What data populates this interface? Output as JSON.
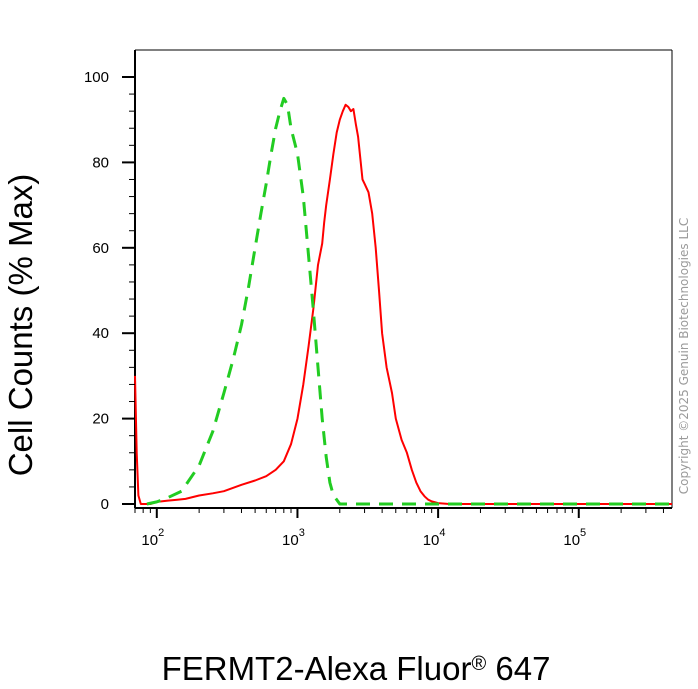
{
  "chart_data": {
    "type": "line",
    "xlabel": "FERMT2-Alexa Fluor",
    "xlabel_mark": "®",
    "xlabel_suffix": " 647",
    "ylabel": "Cell Counts (% Max)",
    "x_scale": "log",
    "xlim": [
      70,
      460000
    ],
    "ylim": [
      0,
      100
    ],
    "y_ticks": [
      0,
      20,
      40,
      60,
      80,
      100
    ],
    "x_ticks": [
      {
        "value": 100,
        "base": "10",
        "exp": "2"
      },
      {
        "value": 1000,
        "base": "10",
        "exp": "3"
      },
      {
        "value": 10000,
        "base": "10",
        "exp": "4"
      },
      {
        "value": 100000,
        "base": "10",
        "exp": "5"
      }
    ],
    "grid": false,
    "series": [
      {
        "color": "#ff0000",
        "style": "solid",
        "points": [
          [
            70,
            30
          ],
          [
            72,
            12
          ],
          [
            74,
            2
          ],
          [
            77,
            0
          ],
          [
            82,
            0
          ],
          [
            90,
            0
          ],
          [
            100,
            0.5
          ],
          [
            120,
            0.8
          ],
          [
            140,
            1
          ],
          [
            160,
            1.2
          ],
          [
            200,
            2
          ],
          [
            250,
            2.5
          ],
          [
            300,
            3
          ],
          [
            400,
            4.5
          ],
          [
            500,
            5.5
          ],
          [
            600,
            6.5
          ],
          [
            700,
            8
          ],
          [
            800,
            10
          ],
          [
            900,
            14
          ],
          [
            1000,
            20
          ],
          [
            1100,
            28
          ],
          [
            1200,
            37
          ],
          [
            1300,
            46
          ],
          [
            1400,
            56
          ],
          [
            1500,
            61
          ],
          [
            1550,
            66
          ],
          [
            1600,
            70
          ],
          [
            1700,
            76
          ],
          [
            1800,
            82
          ],
          [
            1900,
            87
          ],
          [
            2000,
            90
          ],
          [
            2100,
            92
          ],
          [
            2200,
            93.5
          ],
          [
            2300,
            93
          ],
          [
            2400,
            92
          ],
          [
            2500,
            92.5
          ],
          [
            2600,
            89
          ],
          [
            2700,
            86
          ],
          [
            2800,
            81
          ],
          [
            2900,
            76
          ],
          [
            3000,
            75
          ],
          [
            3200,
            73
          ],
          [
            3400,
            68
          ],
          [
            3600,
            60
          ],
          [
            3800,
            50
          ],
          [
            4000,
            40
          ],
          [
            4300,
            32
          ],
          [
            4700,
            26
          ],
          [
            5000,
            20
          ],
          [
            5500,
            15
          ],
          [
            6000,
            12
          ],
          [
            6500,
            8
          ],
          [
            7000,
            5
          ],
          [
            7500,
            3
          ],
          [
            8000,
            1.8
          ],
          [
            8500,
            1
          ],
          [
            9000,
            0.6
          ],
          [
            10000,
            0.2
          ],
          [
            12000,
            0
          ],
          [
            460000,
            0
          ]
        ]
      },
      {
        "color": "#22cc22",
        "style": "dashed",
        "points": [
          [
            85,
            0
          ],
          [
            100,
            0.5
          ],
          [
            120,
            1.5
          ],
          [
            150,
            3
          ],
          [
            200,
            9
          ],
          [
            250,
            17
          ],
          [
            300,
            26
          ],
          [
            350,
            34
          ],
          [
            400,
            42
          ],
          [
            450,
            51
          ],
          [
            500,
            60
          ],
          [
            550,
            68
          ],
          [
            600,
            75
          ],
          [
            650,
            82
          ],
          [
            700,
            88
          ],
          [
            750,
            92
          ],
          [
            800,
            95
          ],
          [
            850,
            93.5
          ],
          [
            900,
            88
          ],
          [
            1000,
            82
          ],
          [
            1100,
            72
          ],
          [
            1200,
            58
          ],
          [
            1300,
            45
          ],
          [
            1400,
            32
          ],
          [
            1500,
            20
          ],
          [
            1600,
            11
          ],
          [
            1700,
            5
          ],
          [
            1800,
            2
          ],
          [
            1900,
            1
          ],
          [
            2000,
            0
          ],
          [
            3000,
            0
          ],
          [
            10000,
            0
          ],
          [
            460000,
            0
          ]
        ]
      }
    ]
  },
  "copyright": "Copyright ©2025 Genuin Biotechnologies LLC"
}
